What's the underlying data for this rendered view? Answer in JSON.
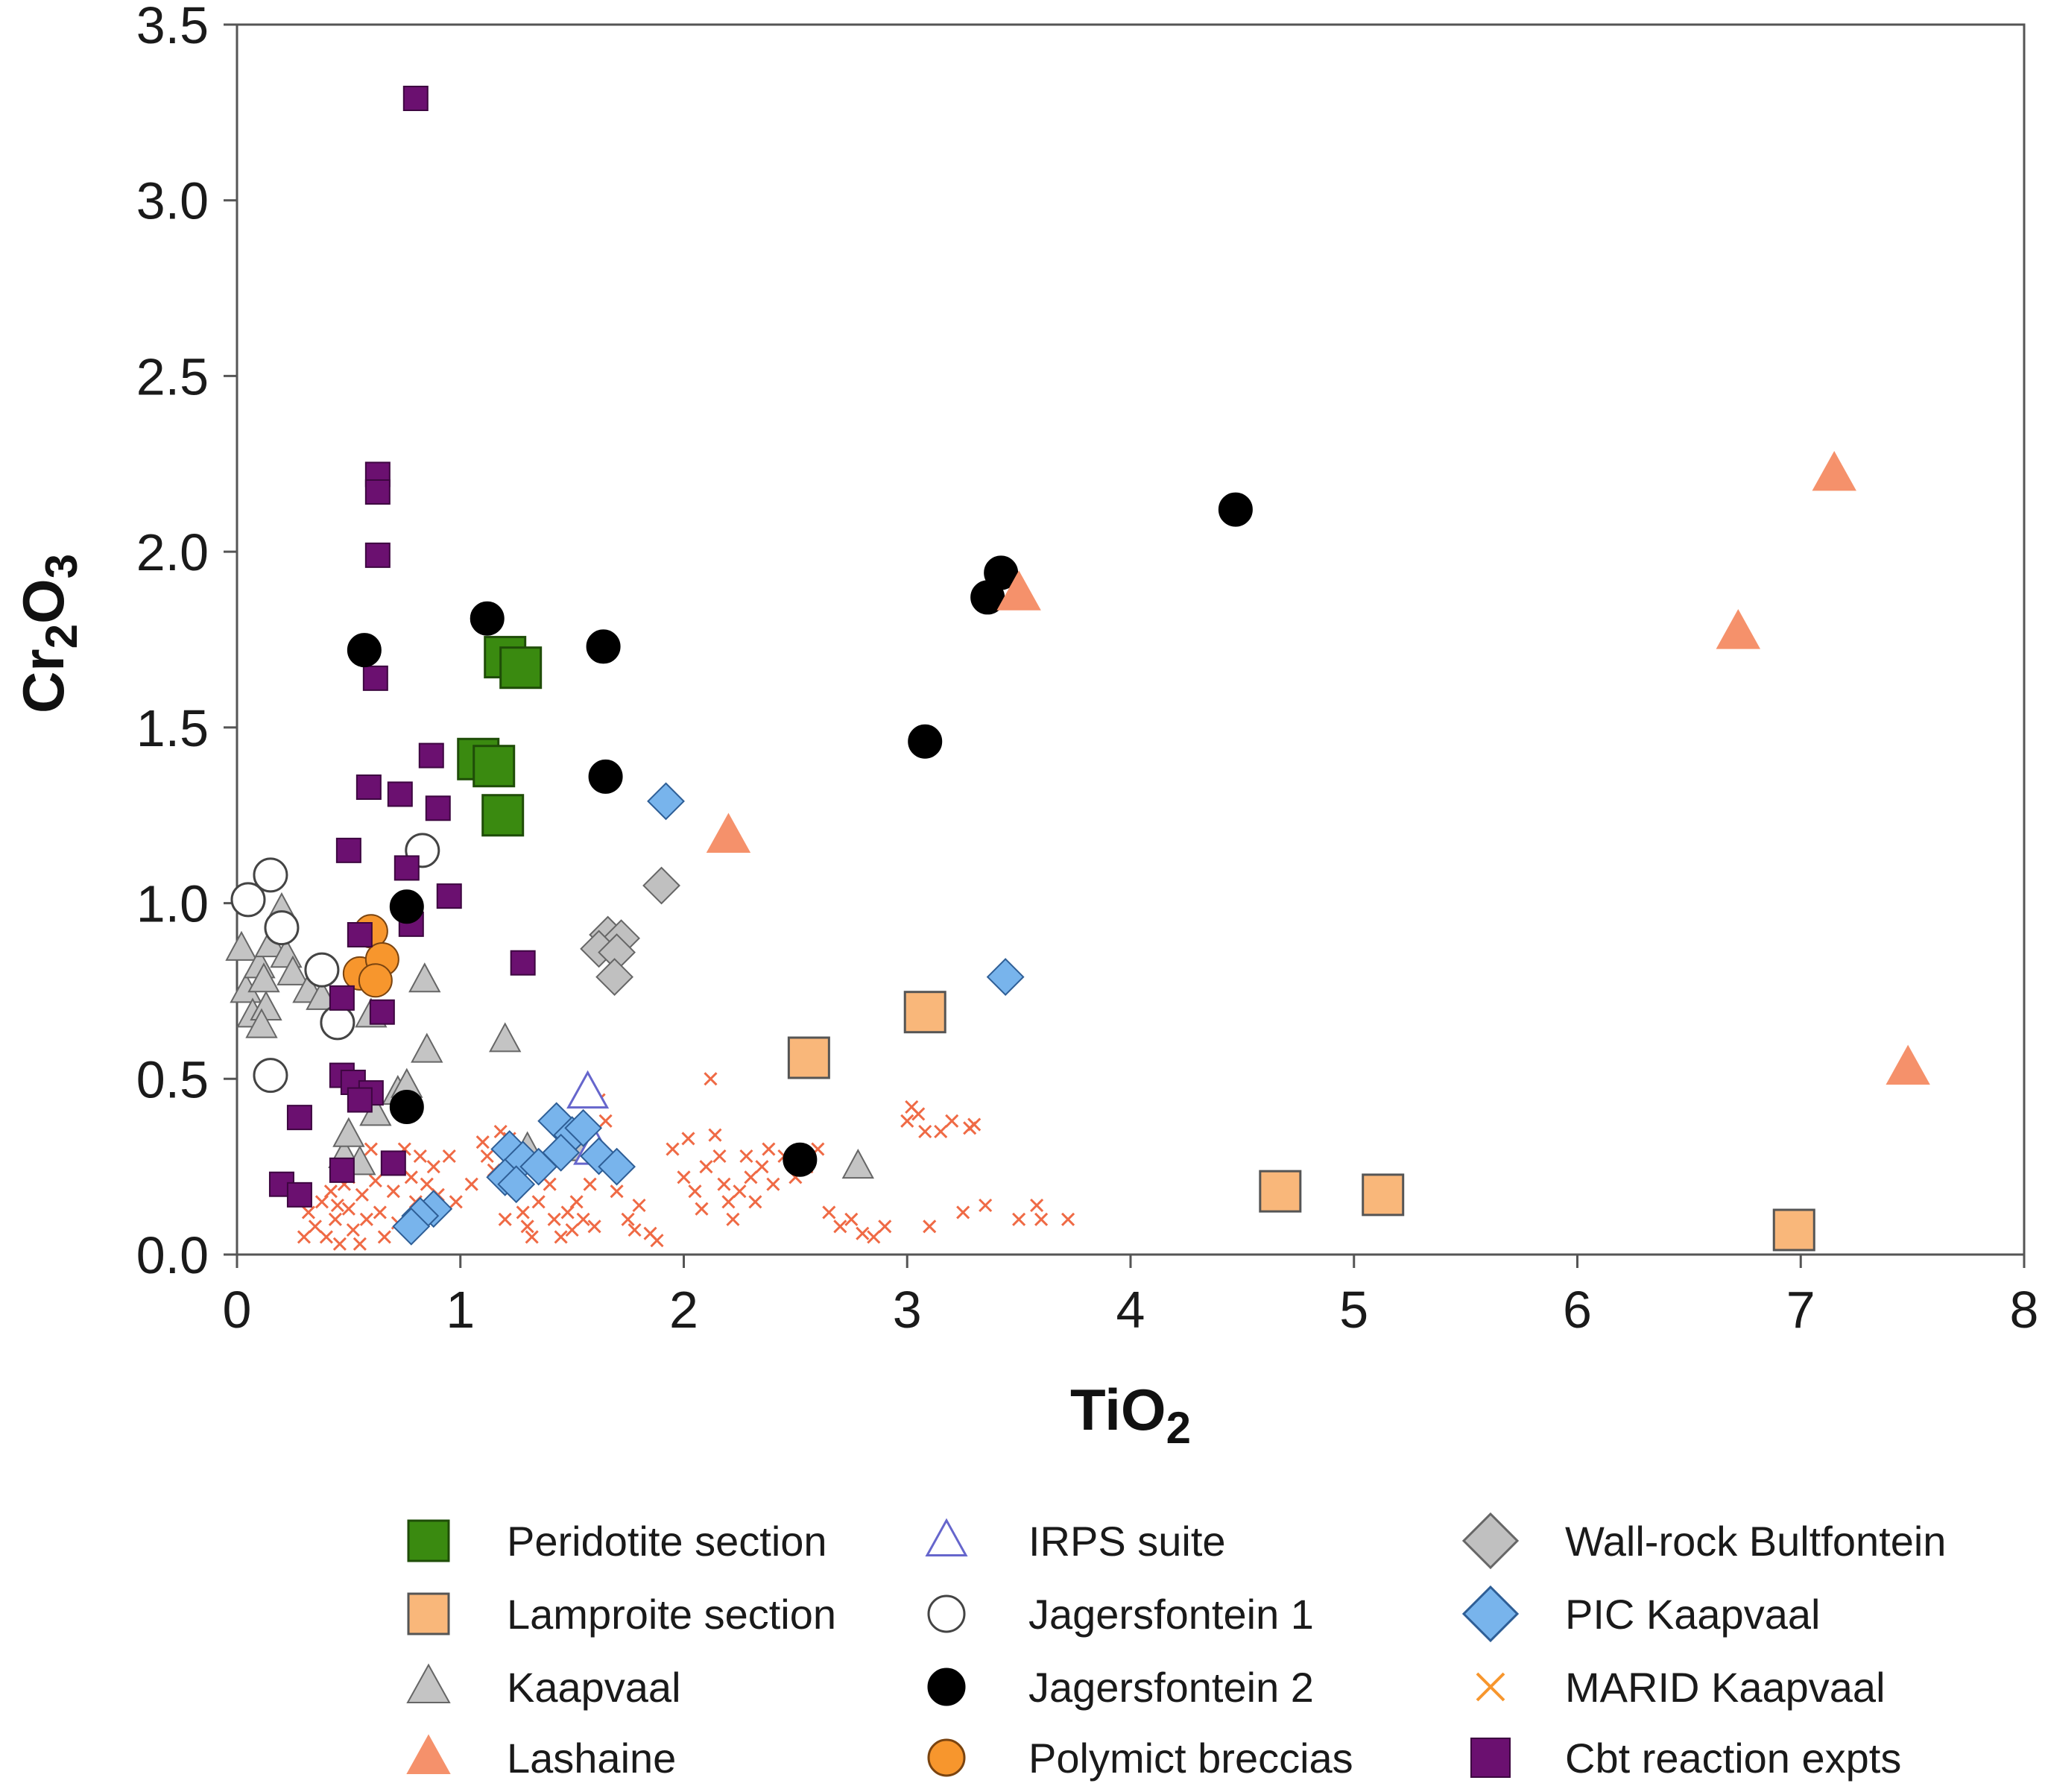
{
  "chart_data": {
    "type": "scatter",
    "xlabel": {
      "base": "TiO",
      "sub": "2"
    },
    "ylabel": {
      "base1": "Cr",
      "sub1": "2",
      "base2": "O",
      "sub2": "3"
    },
    "xlim": [
      0,
      8
    ],
    "ylim": [
      0,
      3.5
    ],
    "xticks": [
      "0",
      "1",
      "2",
      "3",
      "4",
      "5",
      "6",
      "7",
      "8"
    ],
    "yticks": [
      "0.0",
      "0.5",
      "1.0",
      "1.5",
      "2.0",
      "2.5",
      "3.0",
      "3.5"
    ],
    "grid": false,
    "legend_position": "bottom",
    "series": [
      {
        "name": "Peridotite section",
        "marker": "square-large",
        "fill": "#3a8a10",
        "stroke": "#1f4d08",
        "points": [
          [
            1.2,
            1.7
          ],
          [
            1.27,
            1.67
          ],
          [
            1.08,
            1.41
          ],
          [
            1.15,
            1.39
          ],
          [
            1.19,
            1.25
          ]
        ]
      },
      {
        "name": "Lamproite section",
        "marker": "square-large",
        "fill": "#f9b77a",
        "stroke": "#555555",
        "points": [
          [
            3.08,
            0.69
          ],
          [
            2.56,
            0.56
          ],
          [
            4.67,
            0.18
          ],
          [
            5.13,
            0.17
          ],
          [
            6.97,
            0.07
          ]
        ]
      },
      {
        "name": "Kaapvaal",
        "marker": "triangle",
        "fill": "#c4c4c4",
        "stroke": "#666666",
        "points": [
          [
            0.02,
            0.87
          ],
          [
            0.04,
            0.75
          ],
          [
            0.07,
            0.68
          ],
          [
            0.1,
            0.82
          ],
          [
            0.12,
            0.78
          ],
          [
            0.15,
            0.88
          ],
          [
            0.13,
            0.7
          ],
          [
            0.11,
            0.65
          ],
          [
            0.2,
            0.98
          ],
          [
            0.22,
            0.85
          ],
          [
            0.25,
            0.8
          ],
          [
            0.32,
            0.75
          ],
          [
            0.38,
            0.73
          ],
          [
            0.6,
            0.68
          ],
          [
            0.84,
            0.78
          ],
          [
            0.85,
            0.58
          ],
          [
            1.2,
            0.61
          ],
          [
            0.48,
            0.28
          ],
          [
            0.5,
            0.34
          ],
          [
            0.55,
            0.26
          ],
          [
            0.62,
            0.4
          ],
          [
            0.72,
            0.46
          ],
          [
            0.76,
            0.48
          ],
          [
            1.3,
            0.3
          ],
          [
            1.55,
            0.3
          ],
          [
            2.78,
            0.25
          ]
        ]
      },
      {
        "name": "Lashaine",
        "marker": "triangle-large",
        "fill": "#f5916b",
        "stroke": "#f5916b",
        "points": [
          [
            2.2,
            1.19
          ],
          [
            3.5,
            1.88
          ],
          [
            6.72,
            1.77
          ],
          [
            7.15,
            2.22
          ],
          [
            7.48,
            0.53
          ]
        ]
      },
      {
        "name": "IRPS suite",
        "marker": "triangle-open",
        "fill": "#ffffff",
        "stroke": "#6666cc",
        "points": [
          [
            1.57,
            0.46
          ],
          [
            1.6,
            0.3
          ]
        ]
      },
      {
        "name": "Jagersfontein 1",
        "marker": "circle-open",
        "fill": "#ffffff",
        "stroke": "#444444",
        "points": [
          [
            0.05,
            1.01
          ],
          [
            0.15,
            1.08
          ],
          [
            0.2,
            0.93
          ],
          [
            0.38,
            0.81
          ],
          [
            0.45,
            0.66
          ],
          [
            0.15,
            0.51
          ],
          [
            0.83,
            1.15
          ]
        ]
      },
      {
        "name": "Jagersfontein 2",
        "marker": "circle",
        "fill": "#000000",
        "stroke": "#000000",
        "points": [
          [
            0.57,
            1.72
          ],
          [
            1.12,
            1.81
          ],
          [
            1.64,
            1.73
          ],
          [
            1.65,
            1.36
          ],
          [
            0.76,
            0.99
          ],
          [
            0.76,
            0.42
          ],
          [
            2.52,
            0.27
          ],
          [
            3.08,
            1.46
          ],
          [
            3.36,
            1.87
          ],
          [
            3.42,
            1.94
          ],
          [
            4.47,
            2.12
          ]
        ]
      },
      {
        "name": "Polymict breccias",
        "marker": "circle",
        "fill": "#f7962d",
        "stroke": "#7a4410",
        "points": [
          [
            0.6,
            0.92
          ],
          [
            0.55,
            0.8
          ],
          [
            0.65,
            0.84
          ],
          [
            0.62,
            0.78
          ]
        ]
      },
      {
        "name": "Wall-rock Bultfontein",
        "marker": "diamond",
        "fill": "#c0c0c0",
        "stroke": "#666666",
        "points": [
          [
            1.9,
            1.05
          ],
          [
            1.66,
            0.91
          ],
          [
            1.72,
            0.9
          ],
          [
            1.62,
            0.87
          ],
          [
            1.7,
            0.86
          ],
          [
            1.69,
            0.79
          ]
        ]
      },
      {
        "name": "PIC Kaapvaal",
        "marker": "diamond",
        "fill": "#78b4ec",
        "stroke": "#2e5e96",
        "points": [
          [
            1.92,
            1.29
          ],
          [
            3.44,
            0.79
          ],
          [
            1.43,
            0.38
          ],
          [
            1.5,
            0.34
          ],
          [
            1.55,
            0.36
          ],
          [
            1.45,
            0.29
          ],
          [
            1.22,
            0.3
          ],
          [
            1.28,
            0.27
          ],
          [
            1.35,
            0.25
          ],
          [
            1.2,
            0.22
          ],
          [
            1.25,
            0.2
          ],
          [
            1.62,
            0.28
          ],
          [
            1.7,
            0.25
          ],
          [
            0.88,
            0.13
          ],
          [
            0.82,
            0.11
          ],
          [
            0.78,
            0.08
          ]
        ]
      },
      {
        "name": "MARID Kaapvaal",
        "marker": "x",
        "fill": "none",
        "stroke": "#ef6a45",
        "points": [
          [
            0.32,
            0.12
          ],
          [
            0.35,
            0.08
          ],
          [
            0.38,
            0.15
          ],
          [
            0.4,
            0.05
          ],
          [
            0.42,
            0.18
          ],
          [
            0.44,
            0.1
          ],
          [
            0.46,
            0.03
          ],
          [
            0.48,
            0.2
          ],
          [
            0.5,
            0.13
          ],
          [
            0.52,
            0.07
          ],
          [
            0.54,
            0.25
          ],
          [
            0.56,
            0.17
          ],
          [
            0.58,
            0.1
          ],
          [
            0.6,
            0.3
          ],
          [
            0.62,
            0.21
          ],
          [
            0.64,
            0.12
          ],
          [
            0.66,
            0.05
          ],
          [
            0.68,
            0.27
          ],
          [
            0.7,
            0.18
          ],
          [
            0.72,
            0.09
          ],
          [
            0.75,
            0.3
          ],
          [
            0.78,
            0.22
          ],
          [
            0.8,
            0.15
          ],
          [
            0.82,
            0.28
          ],
          [
            0.85,
            0.2
          ],
          [
            0.88,
            0.25
          ],
          [
            0.9,
            0.17
          ],
          [
            0.95,
            0.28
          ],
          [
            0.98,
            0.15
          ],
          [
            0.45,
            0.14
          ],
          [
            0.55,
            0.03
          ],
          [
            0.5,
            0.22
          ],
          [
            1.1,
            0.32
          ],
          [
            1.12,
            0.28
          ],
          [
            1.15,
            0.24
          ],
          [
            1.18,
            0.35
          ],
          [
            1.22,
            0.33
          ],
          [
            1.25,
            0.18
          ],
          [
            1.28,
            0.12
          ],
          [
            1.3,
            0.08
          ],
          [
            1.32,
            0.05
          ],
          [
            1.35,
            0.15
          ],
          [
            1.38,
            0.28
          ],
          [
            1.4,
            0.2
          ],
          [
            1.42,
            0.1
          ],
          [
            1.45,
            0.05
          ],
          [
            1.48,
            0.12
          ],
          [
            1.5,
            0.07
          ],
          [
            1.52,
            0.15
          ],
          [
            1.55,
            0.1
          ],
          [
            1.58,
            0.2
          ],
          [
            1.6,
            0.08
          ],
          [
            1.62,
            0.44
          ],
          [
            1.65,
            0.38
          ],
          [
            1.7,
            0.18
          ],
          [
            1.75,
            0.1
          ],
          [
            1.78,
            0.07
          ],
          [
            1.8,
            0.14
          ],
          [
            1.85,
            0.06
          ],
          [
            1.88,
            0.04
          ],
          [
            1.95,
            0.3
          ],
          [
            2.0,
            0.22
          ],
          [
            2.02,
            0.33
          ],
          [
            2.05,
            0.18
          ],
          [
            2.08,
            0.13
          ],
          [
            2.1,
            0.25
          ],
          [
            2.12,
            0.5
          ],
          [
            2.14,
            0.34
          ],
          [
            2.16,
            0.28
          ],
          [
            2.18,
            0.2
          ],
          [
            2.2,
            0.15
          ],
          [
            2.22,
            0.1
          ],
          [
            2.25,
            0.18
          ],
          [
            2.28,
            0.28
          ],
          [
            2.3,
            0.22
          ],
          [
            2.32,
            0.15
          ],
          [
            2.35,
            0.25
          ],
          [
            2.38,
            0.3
          ],
          [
            2.4,
            0.2
          ],
          [
            2.45,
            0.28
          ],
          [
            2.5,
            0.22
          ],
          [
            2.55,
            0.25
          ],
          [
            2.6,
            0.3
          ],
          [
            2.65,
            0.12
          ],
          [
            2.7,
            0.08
          ],
          [
            2.75,
            0.1
          ],
          [
            2.8,
            0.06
          ],
          [
            2.85,
            0.05
          ],
          [
            2.9,
            0.08
          ],
          [
            3.0,
            0.38
          ],
          [
            3.02,
            0.42
          ],
          [
            3.05,
            0.4
          ],
          [
            3.08,
            0.35
          ],
          [
            3.1,
            0.08
          ],
          [
            3.15,
            0.35
          ],
          [
            3.2,
            0.38
          ],
          [
            3.25,
            0.12
          ],
          [
            3.28,
            0.36
          ],
          [
            3.3,
            0.37
          ],
          [
            3.35,
            0.14
          ],
          [
            3.5,
            0.1
          ],
          [
            3.58,
            0.14
          ],
          [
            3.6,
            0.1
          ],
          [
            3.72,
            0.1
          ],
          [
            0.3,
            0.05
          ],
          [
            1.05,
            0.2
          ],
          [
            1.2,
            0.1
          ]
        ]
      },
      {
        "name": "Cbt reaction expts",
        "marker": "square",
        "fill": "#6b1070",
        "stroke": "#3d0640",
        "points": [
          [
            0.8,
            3.29
          ],
          [
            0.63,
            2.22
          ],
          [
            0.63,
            2.17
          ],
          [
            0.63,
            1.99
          ],
          [
            0.62,
            1.64
          ],
          [
            0.59,
            1.33
          ],
          [
            0.73,
            1.31
          ],
          [
            0.87,
            1.42
          ],
          [
            0.9,
            1.27
          ],
          [
            0.5,
            1.15
          ],
          [
            0.76,
            1.1
          ],
          [
            0.95,
            1.02
          ],
          [
            0.78,
            0.94
          ],
          [
            0.55,
            0.91
          ],
          [
            1.28,
            0.83
          ],
          [
            0.47,
            0.73
          ],
          [
            0.65,
            0.69
          ],
          [
            0.47,
            0.51
          ],
          [
            0.52,
            0.49
          ],
          [
            0.6,
            0.46
          ],
          [
            0.55,
            0.44
          ],
          [
            0.28,
            0.39
          ],
          [
            0.7,
            0.26
          ],
          [
            0.47,
            0.24
          ],
          [
            0.2,
            0.2
          ],
          [
            0.28,
            0.17
          ]
        ]
      }
    ]
  }
}
